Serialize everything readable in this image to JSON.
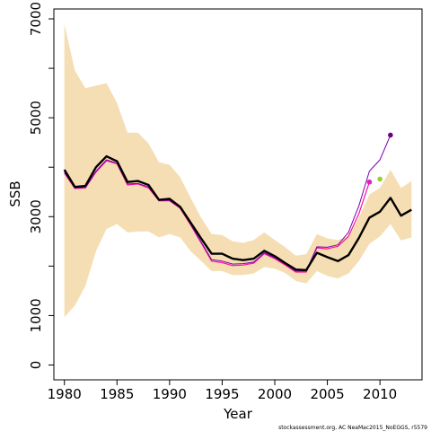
{
  "chart_data": {
    "type": "line",
    "xlabel": "Year",
    "ylabel": "SSB",
    "xlim": [
      1979,
      2014
    ],
    "ylim": [
      -300,
      7200
    ],
    "xticks": [
      1980,
      1985,
      1990,
      1995,
      2000,
      2005,
      2010
    ],
    "yticks": [
      0,
      1000,
      3000,
      5000,
      7000
    ],
    "y_minor_ticks": [
      2000,
      4000,
      6000
    ],
    "grid": false,
    "legend": "none",
    "footnote": "stockassessment.org, AC NeaMac2015_NoEGGS, r5579",
    "colors": {
      "band": "#f5deb3",
      "estimate": "#000000",
      "retro_1": "#ff1493",
      "retro_2": "#7a00b8",
      "point_1": "#e020c0",
      "point_2": "#9acd32",
      "point_3": "#6b0080"
    },
    "band": {
      "x": [
        1980,
        1981,
        1982,
        1983,
        1984,
        1985,
        1986,
        1987,
        1988,
        1989,
        1990,
        1991,
        1992,
        1993,
        1994,
        1995,
        1996,
        1997,
        1998,
        1999,
        2000,
        2001,
        2002,
        2003,
        2004,
        2005,
        2006,
        2007,
        2008,
        2009,
        2010,
        2011,
        2012,
        2013
      ],
      "lower": [
        970,
        1200,
        1600,
        2300,
        2750,
        2850,
        2680,
        2700,
        2700,
        2580,
        2650,
        2580,
        2300,
        2100,
        1900,
        1900,
        1820,
        1820,
        1850,
        1980,
        1950,
        1860,
        1700,
        1650,
        1900,
        1800,
        1750,
        1850,
        2100,
        2450,
        2600,
        2850,
        2520,
        2580
      ],
      "upper": [
        6900,
        5950,
        5600,
        5650,
        5700,
        5300,
        4700,
        4700,
        4480,
        4100,
        4050,
        3800,
        3380,
        2980,
        2650,
        2630,
        2500,
        2470,
        2530,
        2680,
        2530,
        2380,
        2210,
        2240,
        2650,
        2560,
        2530,
        2600,
        2980,
        3450,
        3580,
        3950,
        3580,
        3720
      ]
    },
    "series": [
      {
        "name": "",
        "x": [
          1980,
          1981,
          1982,
          1983,
          1984,
          1985,
          1986,
          1987,
          1988,
          1989,
          1990,
          1991,
          1992,
          1993,
          1994,
          1995,
          1996,
          1997,
          1998,
          1999,
          2000,
          2001,
          2002,
          2003,
          2004,
          2005,
          2006,
          2007,
          2008,
          2009,
          2010,
          2011,
          2012,
          2013
        ],
        "values": [
          3950,
          3600,
          3620,
          4000,
          4220,
          4120,
          3700,
          3720,
          3640,
          3340,
          3360,
          3200,
          2880,
          2560,
          2250,
          2250,
          2150,
          2120,
          2150,
          2310,
          2200,
          2060,
          1930,
          1920,
          2270,
          2180,
          2100,
          2220,
          2570,
          2980,
          3100,
          3380,
          3020,
          3140
        ]
      },
      {
        "name": "",
        "x": [
          1980,
          1981,
          1982,
          1983,
          1984,
          1985,
          1986,
          1987,
          1988,
          1989,
          1990,
          1991,
          1992,
          1993,
          1994,
          1995,
          1996,
          1997,
          1998,
          1999,
          2000,
          2001,
          2002,
          2003,
          2004,
          2005,
          2006,
          2007,
          2008,
          2009
        ],
        "values": [
          3880,
          3570,
          3580,
          3900,
          4130,
          4070,
          3640,
          3660,
          3580,
          3320,
          3320,
          3170,
          2830,
          2470,
          2100,
          2070,
          2010,
          2020,
          2060,
          2250,
          2150,
          2020,
          1880,
          1880,
          2370,
          2350,
          2400,
          2600,
          3060,
          3700
        ]
      },
      {
        "name": "",
        "x": [
          1980,
          1981,
          1982,
          1983,
          1984,
          1985,
          1986,
          1987,
          1988,
          1989,
          1990,
          1991,
          1992,
          1993,
          1994,
          1995,
          1996,
          1997,
          1998,
          1999,
          2000,
          2001,
          2002,
          2003,
          2004,
          2005,
          2006,
          2007,
          2008,
          2009,
          2010,
          2011
        ],
        "values": [
          3900,
          3580,
          3590,
          3920,
          4150,
          4080,
          3660,
          3670,
          3600,
          3330,
          3330,
          3180,
          2850,
          2490,
          2130,
          2100,
          2040,
          2050,
          2080,
          2270,
          2170,
          2040,
          1900,
          1900,
          2390,
          2380,
          2430,
          2680,
          3220,
          3920,
          4150,
          4650
        ]
      }
    ],
    "points": [
      {
        "x": 2009,
        "y": 3700,
        "color_key": "point_1"
      },
      {
        "x": 2010,
        "y": 3760,
        "color_key": "point_2"
      },
      {
        "x": 2011,
        "y": 4650,
        "color_key": "point_3"
      }
    ]
  }
}
